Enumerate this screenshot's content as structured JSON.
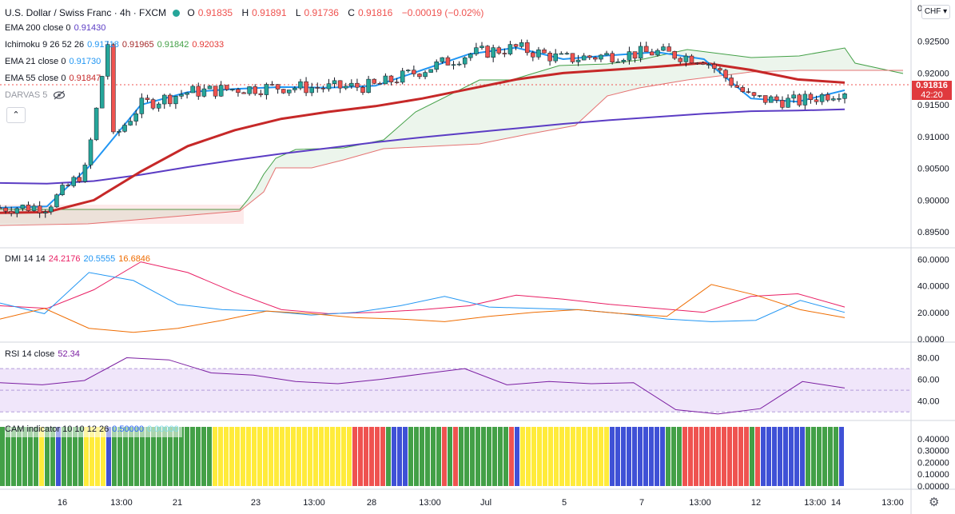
{
  "header": {
    "symbol": "U.S. Dollar / Swiss Franc · 4h · FXCM",
    "ohlc": [
      {
        "k": "O",
        "v": "0.91835"
      },
      {
        "k": "H",
        "v": "0.91891"
      },
      {
        "k": "L",
        "v": "0.91736"
      },
      {
        "k": "C",
        "v": "0.91816"
      }
    ],
    "change": "−0.00019 (−0.02%)"
  },
  "indicators": {
    "ema200": {
      "label": "EMA 200 close 0",
      "value": "0.91430"
    },
    "ichimoku": {
      "label": "Ichimoku 9 26 52 26",
      "values": [
        "0.91718",
        "0.91965",
        "0.91842",
        "0.92033"
      ]
    },
    "ema21": {
      "label": "EMA 21 close 0",
      "value": "0.91730"
    },
    "ema55": {
      "label": "EMA 55 close 0",
      "value": "0.91847"
    },
    "darvas": {
      "label": "DARVAS 5"
    },
    "dmi": {
      "label": "DMI 14 14",
      "values": [
        "24.2176",
        "20.5555",
        "16.6846"
      ]
    },
    "rsi": {
      "label": "RSI 14 close",
      "value": "52.34"
    },
    "cam": {
      "label": "CAM indicator 10 10 12 26",
      "values": [
        "0.50000",
        "0.00000"
      ]
    }
  },
  "price_axis": {
    "currency": "CHF",
    "current_price": "0.91816",
    "countdown": "42:20"
  },
  "colors": {
    "up": "#26a69a",
    "down": "#ef5350",
    "candle_up": "#26a69a",
    "candle_down": "#ef5350",
    "ema200": "#5b3cc4",
    "ema55": "#c62828",
    "ema21": "#2196f3",
    "tenkan": "#2196f3",
    "kijun": "#a52a2a",
    "chikou": "#43a047",
    "spanA": "#43a047",
    "spanB": "#e57373",
    "plus_di": "#2196f3",
    "minus_di": "#ef6c00",
    "adx": "#e91e63",
    "rsi": "#7b1fa2",
    "rsi_band": "#f0e6fa",
    "cam_green": "#43a047",
    "cam_yellow": "#ffeb3b",
    "cam_red": "#ef5350",
    "cam_blue": "#3f51d6"
  },
  "chart_data": [
    {
      "type": "line",
      "pane": "price",
      "x_ticks": [
        "16",
        "13:00",
        "21",
        "23",
        "13:00",
        "28",
        "13:00",
        "Jul",
        "5",
        "7",
        "13:00",
        "12",
        "13:00",
        "14",
        "13:00"
      ],
      "y_ticks": [
        "0",
        "0.92500",
        "0.92000",
        "0.91500",
        "0.91000",
        "0.90500",
        "0.90000",
        "0.89500"
      ],
      "ylim": [
        0.8935,
        0.9305
      ],
      "series": [
        {
          "name": "EMA 200",
          "values": [
            0.9027,
            0.9026,
            0.903,
            0.904,
            0.9052,
            0.9063,
            0.9073,
            0.9082,
            0.9091,
            0.9099,
            0.9106,
            0.9113,
            0.912,
            0.9126,
            0.9131,
            0.9136,
            0.914,
            0.9141,
            0.9143
          ]
        },
        {
          "name": "EMA 55",
          "values": [
            0.898,
            0.8981,
            0.9,
            0.9045,
            0.9085,
            0.911,
            0.9128,
            0.9139,
            0.9148,
            0.916,
            0.9175,
            0.919,
            0.92,
            0.9205,
            0.921,
            0.9216,
            0.9205,
            0.919,
            0.9185
          ]
        },
        {
          "name": "EMA 21",
          "values": [
            0.8988,
            0.899,
            0.906,
            0.915,
            0.917,
            0.9175,
            0.9178,
            0.9177,
            0.918,
            0.9205,
            0.923,
            0.924,
            0.9222,
            0.9228,
            0.9233,
            0.9222,
            0.916,
            0.9155,
            0.9173
          ]
        }
      ]
    },
    {
      "type": "line",
      "pane": "DMI",
      "y_ticks": [
        "60.0000",
        "40.0000",
        "20.0000",
        "0.0000"
      ],
      "ylim": [
        0,
        65
      ],
      "series": [
        {
          "name": "ADX",
          "values": [
            25,
            23,
            37,
            58,
            50,
            35,
            22,
            19,
            20,
            22,
            25,
            33,
            30,
            26,
            23,
            20,
            32,
            34,
            24
          ]
        },
        {
          "name": "+DI",
          "values": [
            27,
            19,
            50,
            44,
            26,
            22,
            21,
            18,
            20,
            25,
            32,
            24,
            23,
            22,
            19,
            15,
            13,
            14,
            29,
            20
          ]
        },
        {
          "name": "-DI",
          "values": [
            15,
            23,
            8,
            5,
            8,
            14,
            21,
            19,
            16,
            15,
            13,
            17,
            20,
            22,
            19,
            17,
            41,
            33,
            22,
            16
          ]
        }
      ]
    },
    {
      "type": "line",
      "pane": "RSI",
      "y_ticks": [
        "80.00",
        "60.00",
        "40.00"
      ],
      "ylim": [
        25,
        90
      ],
      "series": [
        {
          "name": "RSI",
          "values": [
            57,
            55,
            59,
            80,
            78,
            66,
            64,
            58,
            56,
            60,
            65,
            70,
            55,
            58,
            56,
            57,
            32,
            28,
            33,
            58,
            52
          ]
        }
      ]
    },
    {
      "type": "bar",
      "pane": "CAM",
      "y_ticks": [
        "0.40000",
        "0.30000",
        "0.20000",
        "0.10000",
        "0.00000"
      ],
      "ylim": [
        0,
        0.5
      ]
    }
  ]
}
